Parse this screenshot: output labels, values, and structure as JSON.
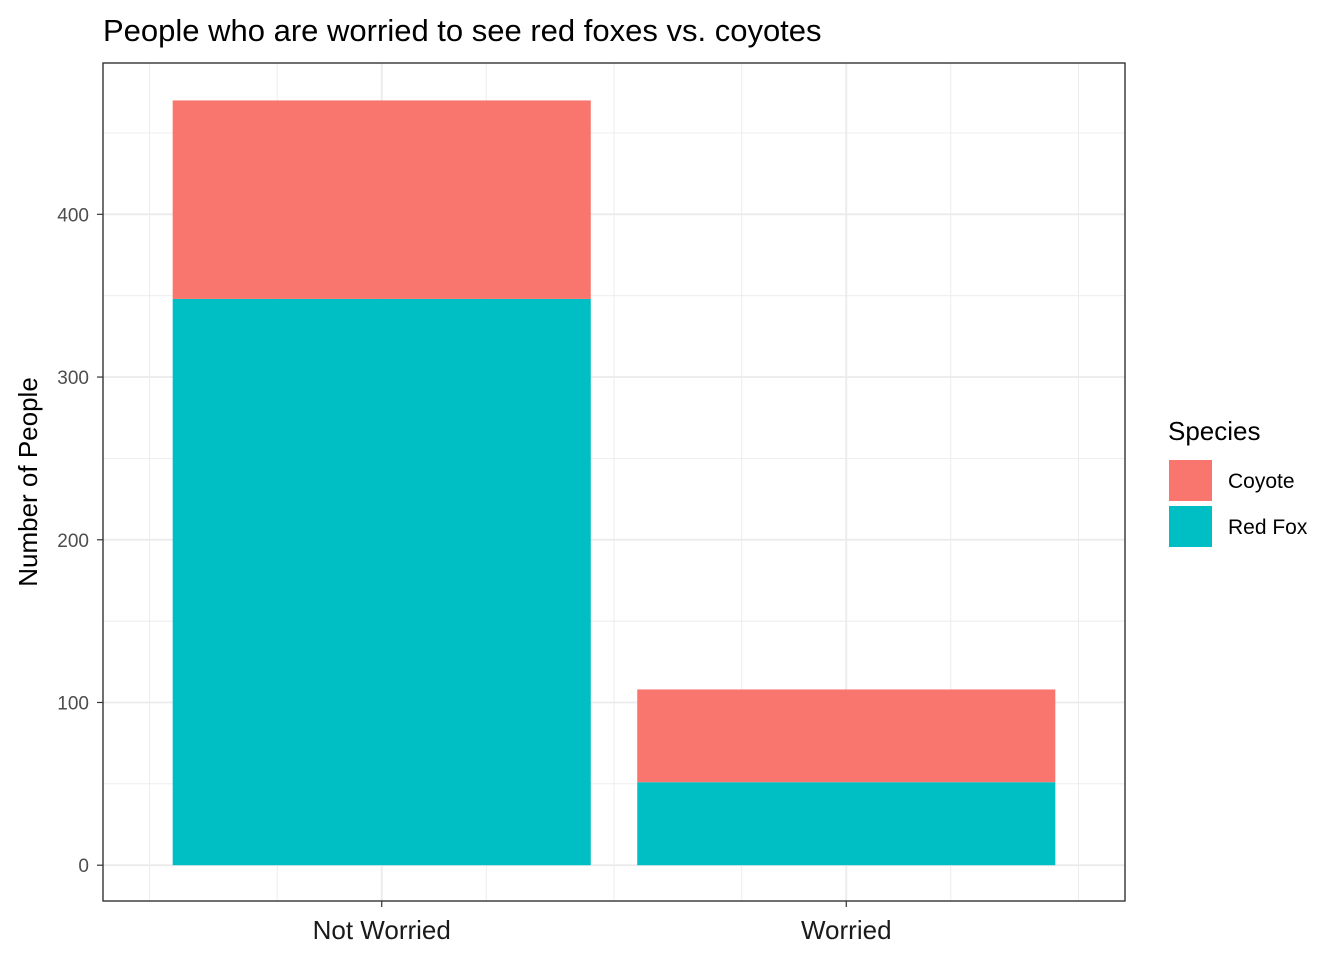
{
  "chart_data": {
    "type": "bar",
    "stacked": true,
    "title": "People who are worried to see red foxes vs. coyotes",
    "xlabel": "",
    "ylabel": "Number of People",
    "categories": [
      "Not Worried",
      "Worried"
    ],
    "series": [
      {
        "name": "Coyote",
        "values": [
          122,
          57
        ],
        "color": "#F8766D"
      },
      {
        "name": "Red Fox",
        "values": [
          348,
          51
        ],
        "color": "#00BFC4"
      }
    ],
    "stack_order": [
      "Red Fox",
      "Coyote"
    ],
    "ylim": [
      -22,
      493
    ],
    "yticks": [
      0,
      100,
      200,
      300,
      400
    ],
    "grid": true,
    "legend": {
      "title": "Species",
      "position": "right"
    }
  }
}
